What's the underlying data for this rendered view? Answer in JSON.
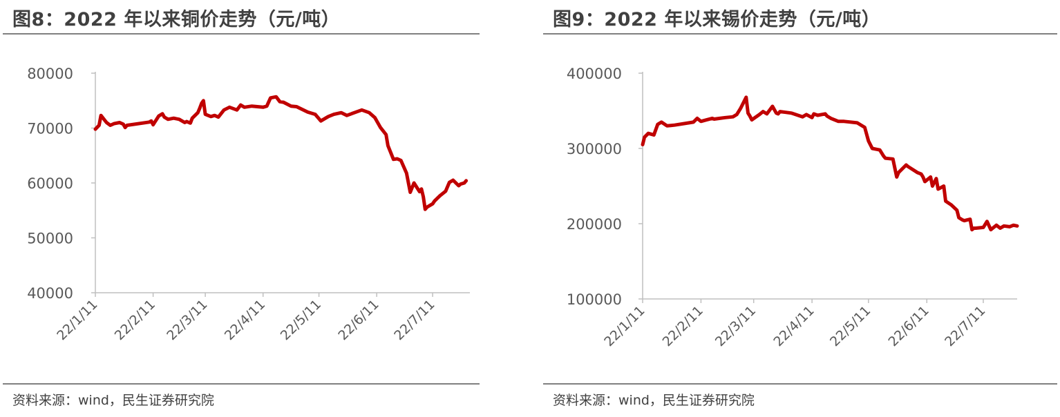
{
  "panels": [
    {
      "title": "图8：2022 年以来铜价走势（元/吨）",
      "source": "资料来源：wind，民生证券研究院"
    },
    {
      "title": "图9：2022 年以来锡价走势（元/吨）",
      "source": "资料来源：wind，民生证券研究院"
    }
  ],
  "chart_data": [
    {
      "type": "line",
      "title": "图8：2022 年以来铜价走势（元/吨）",
      "xlabel": "",
      "ylabel": "",
      "ylim": [
        40000,
        80000
      ],
      "yticks": [
        "40000",
        "50000",
        "60000",
        "70000",
        "80000"
      ],
      "xticks": [
        "22/1/11",
        "22/2/11",
        "22/3/11",
        "22/4/11",
        "22/5/11",
        "22/6/11",
        "22/7/11"
      ],
      "xtick_dates": [
        "2022-01-11",
        "2022-02-11",
        "2022-03-11",
        "2022-04-11",
        "2022-05-11",
        "2022-06-11",
        "2022-07-11"
      ],
      "xlim": [
        "2022-01-11",
        "2022-07-31"
      ],
      "grid": false,
      "line_color": "#c00000",
      "series": [
        {
          "x": [
            "2022-01-11",
            "2022-01-13",
            "2022-01-14",
            "2022-01-17",
            "2022-01-19",
            "2022-01-21",
            "2022-01-24",
            "2022-01-26",
            "2022-01-27",
            "2022-01-28",
            "2022-02-09",
            "2022-02-10",
            "2022-02-11",
            "2022-02-14",
            "2022-02-16",
            "2022-02-17",
            "2022-02-19",
            "2022-02-22",
            "2022-02-25",
            "2022-02-28",
            "2022-03-01",
            "2022-03-03",
            "2022-03-04",
            "2022-03-07",
            "2022-03-08",
            "2022-03-09",
            "2022-03-10",
            "2022-03-11",
            "2022-03-14",
            "2022-03-16",
            "2022-03-18",
            "2022-03-21",
            "2022-03-24",
            "2022-03-28",
            "2022-03-30",
            "2022-04-01",
            "2022-04-05",
            "2022-04-11",
            "2022-04-13",
            "2022-04-15",
            "2022-04-18",
            "2022-04-20",
            "2022-04-22",
            "2022-04-26",
            "2022-04-29",
            "2022-05-05",
            "2022-05-09",
            "2022-05-12",
            "2022-05-16",
            "2022-05-19",
            "2022-05-23",
            "2022-05-26",
            "2022-05-30",
            "2022-06-03",
            "2022-06-07",
            "2022-06-10",
            "2022-06-13",
            "2022-06-16",
            "2022-06-17",
            "2022-06-20",
            "2022-06-22",
            "2022-06-24",
            "2022-06-27",
            "2022-06-29",
            "2022-07-01",
            "2022-07-04",
            "2022-07-05",
            "2022-07-06",
            "2022-07-07",
            "2022-07-08",
            "2022-07-11",
            "2022-07-12",
            "2022-07-15",
            "2022-07-18",
            "2022-07-20",
            "2022-07-22",
            "2022-07-25",
            "2022-07-26",
            "2022-07-28",
            "2022-07-29"
          ],
          "y": [
            69800,
            70500,
            72300,
            71000,
            70500,
            70800,
            71000,
            70700,
            70100,
            70500,
            71100,
            71300,
            70600,
            72200,
            72600,
            72000,
            71600,
            71800,
            71600,
            71000,
            71200,
            70900,
            71800,
            72800,
            73600,
            74500,
            75000,
            72500,
            72100,
            72300,
            72000,
            73300,
            73800,
            73300,
            74200,
            73800,
            74000,
            73800,
            74000,
            75500,
            75700,
            74800,
            74700,
            74000,
            73900,
            72900,
            72500,
            71300,
            72100,
            72500,
            72800,
            72300,
            72800,
            73300,
            72800,
            71900,
            70100,
            68800,
            66800,
            64300,
            64400,
            64100,
            61800,
            58300,
            60000,
            58400,
            58900,
            57500,
            55200,
            55600,
            56200,
            56700,
            57700,
            58500,
            60100,
            60500,
            59500,
            59800,
            60000,
            60400
          ]
        }
      ]
    },
    {
      "type": "line",
      "title": "图9：2022 年以来锡价走势（元/吨）",
      "xlabel": "",
      "ylabel": "",
      "ylim": [
        100000,
        400000
      ],
      "yticks": [
        "100000",
        "200000",
        "300000",
        "400000"
      ],
      "xticks": [
        "22/1/11",
        "22/2/11",
        "22/3/11",
        "22/4/11",
        "22/5/11",
        "22/6/11",
        "22/7/11"
      ],
      "xtick_dates": [
        "2022-01-11",
        "2022-02-11",
        "2022-03-11",
        "2022-04-11",
        "2022-05-11",
        "2022-06-11",
        "2022-07-11"
      ],
      "xlim": [
        "2022-01-11",
        "2022-07-29"
      ],
      "grid": false,
      "line_color": "#c00000",
      "series": [
        {
          "x": [
            "2022-01-11",
            "2022-01-12",
            "2022-01-14",
            "2022-01-17",
            "2022-01-19",
            "2022-01-21",
            "2022-01-24",
            "2022-01-26",
            "2022-01-28",
            "2022-02-07",
            "2022-02-09",
            "2022-02-11",
            "2022-02-14",
            "2022-02-17",
            "2022-02-18",
            "2022-02-21",
            "2022-02-24",
            "2022-02-28",
            "2022-03-02",
            "2022-03-04",
            "2022-03-07",
            "2022-03-08",
            "2022-03-09",
            "2022-03-10",
            "2022-03-14",
            "2022-03-16",
            "2022-03-18",
            "2022-03-21",
            "2022-03-23",
            "2022-03-24",
            "2022-03-25",
            "2022-03-28",
            "2022-03-31",
            "2022-04-06",
            "2022-04-08",
            "2022-04-11",
            "2022-04-12",
            "2022-04-14",
            "2022-04-18",
            "2022-04-19",
            "2022-04-21",
            "2022-04-25",
            "2022-04-28",
            "2022-05-05",
            "2022-05-09",
            "2022-05-11",
            "2022-05-13",
            "2022-05-17",
            "2022-05-19",
            "2022-05-20",
            "2022-05-24",
            "2022-05-26",
            "2022-05-27",
            "2022-05-31",
            "2022-06-01",
            "2022-06-06",
            "2022-06-08",
            "2022-06-09",
            "2022-06-10",
            "2022-06-13",
            "2022-06-14",
            "2022-06-16",
            "2022-06-17",
            "2022-06-20",
            "2022-06-21",
            "2022-06-24",
            "2022-06-27",
            "2022-06-28",
            "2022-06-30",
            "2022-07-01",
            "2022-07-04",
            "2022-07-05",
            "2022-07-06",
            "2022-07-07",
            "2022-07-11",
            "2022-07-13",
            "2022-07-15",
            "2022-07-18",
            "2022-07-20",
            "2022-07-22",
            "2022-07-25",
            "2022-07-27",
            "2022-07-29"
          ],
          "y": [
            305000,
            315000,
            320000,
            318000,
            332000,
            335000,
            330000,
            330500,
            331000,
            335000,
            340000,
            336000,
            338000,
            340000,
            339000,
            340000,
            341000,
            342000,
            345000,
            353000,
            368000,
            347000,
            343000,
            338000,
            345000,
            349000,
            346000,
            356000,
            347000,
            346000,
            349000,
            348000,
            347000,
            342000,
            345000,
            341000,
            346000,
            344000,
            346000,
            343000,
            340000,
            336000,
            336000,
            334000,
            328000,
            310000,
            300000,
            298000,
            290000,
            287000,
            286000,
            262000,
            268000,
            278000,
            276000,
            268000,
            266000,
            262000,
            256000,
            262000,
            250000,
            260000,
            246000,
            250000,
            230000,
            225000,
            218000,
            208000,
            205000,
            204000,
            206000,
            192000,
            194000,
            194000,
            195000,
            203000,
            192000,
            198000,
            194000,
            197000,
            196000,
            198000,
            197000
          ]
        }
      ]
    }
  ]
}
